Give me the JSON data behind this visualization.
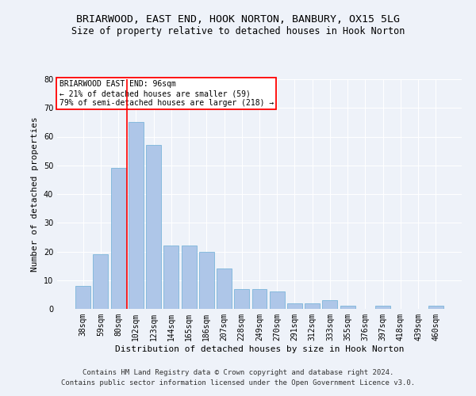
{
  "title": "BRIARWOOD, EAST END, HOOK NORTON, BANBURY, OX15 5LG",
  "subtitle": "Size of property relative to detached houses in Hook Norton",
  "xlabel": "Distribution of detached houses by size in Hook Norton",
  "ylabel": "Number of detached properties",
  "categories": [
    "38sqm",
    "59sqm",
    "80sqm",
    "102sqm",
    "123sqm",
    "144sqm",
    "165sqm",
    "186sqm",
    "207sqm",
    "228sqm",
    "249sqm",
    "270sqm",
    "291sqm",
    "312sqm",
    "333sqm",
    "355sqm",
    "376sqm",
    "397sqm",
    "418sqm",
    "439sqm",
    "460sqm"
  ],
  "values": [
    8,
    19,
    49,
    65,
    57,
    22,
    22,
    20,
    14,
    7,
    7,
    6,
    2,
    2,
    3,
    1,
    0,
    1,
    0,
    0,
    1
  ],
  "bar_color": "#aec6e8",
  "bar_edge_color": "#6aaed6",
  "vline_x": 2.5,
  "vline_color": "red",
  "annotation_title": "BRIARWOOD EAST END: 96sqm",
  "annotation_line1": "← 21% of detached houses are smaller (59)",
  "annotation_line2": "79% of semi-detached houses are larger (218) →",
  "annotation_box_color": "white",
  "annotation_box_edge": "red",
  "ylim": [
    0,
    80
  ],
  "yticks": [
    0,
    10,
    20,
    30,
    40,
    50,
    60,
    70,
    80
  ],
  "footer_line1": "Contains HM Land Registry data © Crown copyright and database right 2024.",
  "footer_line2": "Contains public sector information licensed under the Open Government Licence v3.0.",
  "background_color": "#eef2f9",
  "grid_color": "white",
  "title_fontsize": 9.5,
  "subtitle_fontsize": 8.5,
  "xlabel_fontsize": 8,
  "ylabel_fontsize": 8,
  "tick_fontsize": 7,
  "footer_fontsize": 6.5,
  "annotation_fontsize": 7
}
